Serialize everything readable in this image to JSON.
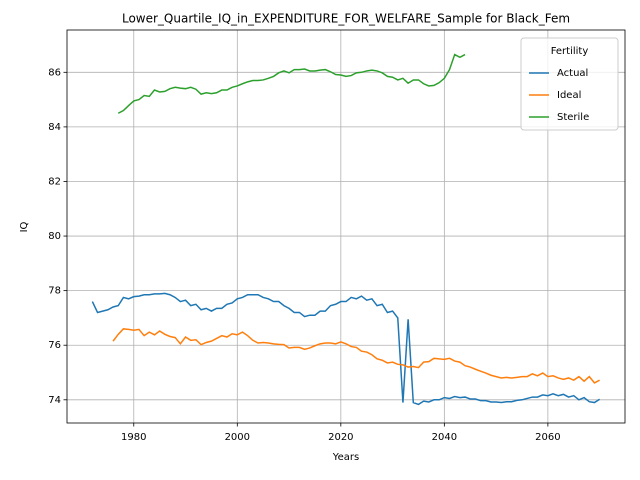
{
  "chart_data": {
    "type": "line",
    "title": "Lower_Quartile_IQ_in_EXPENDITURE_FOR_WELFARE_Sample for Black_Fem",
    "x_label": "Years",
    "y_label": "IQ",
    "legend_title": "Fertility",
    "legend": "upper right",
    "grid": true,
    "xlim": [
      1967.1,
      2074.9
    ],
    "ylim": [
      73.15,
      87.55
    ],
    "xticks": [
      1980,
      2000,
      2020,
      2040,
      2060
    ],
    "yticks": [
      74,
      76,
      78,
      80,
      82,
      84,
      86
    ],
    "x": [
      1972,
      1973,
      1974,
      1975,
      1976,
      1977,
      1978,
      1979,
      1980,
      1981,
      1982,
      1983,
      1984,
      1985,
      1986,
      1987,
      1988,
      1989,
      1990,
      1991,
      1992,
      1993,
      1994,
      1995,
      1996,
      1997,
      1998,
      1999,
      2000,
      2001,
      2002,
      2003,
      2004,
      2005,
      2006,
      2007,
      2008,
      2009,
      2010,
      2011,
      2012,
      2013,
      2014,
      2015,
      2016,
      2017,
      2018,
      2019,
      2020,
      2021,
      2022,
      2023,
      2024,
      2025,
      2026,
      2027,
      2028,
      2029,
      2030,
      2031,
      2032,
      2033,
      2034,
      2035,
      2036,
      2037,
      2038,
      2039,
      2040,
      2041,
      2042,
      2043,
      2044,
      2045,
      2046,
      2047,
      2048,
      2049,
      2050,
      2051,
      2052,
      2053,
      2054,
      2055,
      2056,
      2057,
      2058,
      2059,
      2060,
      2061,
      2062,
      2063,
      2064,
      2065,
      2066,
      2067,
      2068,
      2069,
      2070
    ],
    "series": [
      {
        "name": "Actual",
        "color": "#1f77b4",
        "values": [
          77.6,
          77.2,
          77.25,
          77.3,
          77.4,
          77.45,
          77.75,
          77.7,
          77.78,
          77.8,
          77.85,
          77.85,
          77.88,
          77.88,
          77.9,
          77.85,
          77.75,
          77.6,
          77.65,
          77.45,
          77.5,
          77.3,
          77.35,
          77.25,
          77.35,
          77.35,
          77.5,
          77.55,
          77.7,
          77.75,
          77.85,
          77.85,
          77.85,
          77.75,
          77.7,
          77.6,
          77.6,
          77.45,
          77.35,
          77.2,
          77.2,
          77.05,
          77.1,
          77.1,
          77.25,
          77.25,
          77.45,
          77.5,
          77.6,
          77.6,
          77.75,
          77.7,
          77.8,
          77.65,
          77.7,
          77.45,
          77.5,
          77.2,
          77.25,
          77.0,
          73.9,
          76.95,
          73.9,
          73.83,
          73.95,
          73.92,
          74.0,
          74.0,
          74.08,
          74.05,
          74.12,
          74.08,
          74.1,
          74.03,
          74.03,
          73.97,
          73.97,
          73.92,
          73.92,
          73.9,
          73.93,
          73.93,
          73.98,
          74.0,
          74.05,
          74.1,
          74.1,
          74.18,
          74.15,
          74.22,
          74.15,
          74.2,
          74.1,
          74.15,
          74.0,
          74.08,
          73.93,
          73.9,
          74.02
        ]
      },
      {
        "name": "Ideal",
        "color": "#ff7f0e",
        "values": [
          null,
          null,
          null,
          null,
          76.15,
          76.4,
          76.6,
          76.58,
          76.55,
          76.58,
          76.35,
          76.48,
          76.38,
          76.52,
          76.4,
          76.32,
          76.28,
          76.05,
          76.3,
          76.18,
          76.2,
          76.02,
          76.1,
          76.15,
          76.25,
          76.35,
          76.3,
          76.42,
          76.38,
          76.48,
          76.35,
          76.18,
          76.08,
          76.1,
          76.08,
          76.05,
          76.03,
          76.02,
          75.9,
          75.92,
          75.92,
          75.85,
          75.9,
          75.98,
          76.05,
          76.08,
          76.08,
          76.05,
          76.12,
          76.05,
          75.95,
          75.92,
          75.78,
          75.75,
          75.65,
          75.5,
          75.45,
          75.35,
          75.38,
          75.3,
          75.28,
          75.2,
          75.22,
          75.18,
          75.38,
          75.4,
          75.52,
          75.5,
          75.48,
          75.52,
          75.42,
          75.38,
          75.25,
          75.2,
          75.12,
          75.05,
          74.98,
          74.9,
          74.85,
          74.8,
          74.82,
          74.8,
          74.82,
          74.85,
          74.85,
          74.95,
          74.88,
          74.98,
          74.85,
          74.88,
          74.8,
          74.75,
          74.8,
          74.72,
          74.85,
          74.68,
          74.85,
          74.62,
          74.72
        ]
      },
      {
        "name": "Sterile",
        "color": "#2ca02c",
        "values": [
          null,
          null,
          null,
          null,
          null,
          84.5,
          84.6,
          84.78,
          84.95,
          85.0,
          85.15,
          85.12,
          85.35,
          85.28,
          85.3,
          85.4,
          85.45,
          85.42,
          85.4,
          85.45,
          85.38,
          85.2,
          85.25,
          85.22,
          85.25,
          85.35,
          85.35,
          85.45,
          85.5,
          85.58,
          85.65,
          85.7,
          85.7,
          85.72,
          85.78,
          85.85,
          85.98,
          86.05,
          85.98,
          86.1,
          86.1,
          86.12,
          86.05,
          86.05,
          86.08,
          86.1,
          86.02,
          85.92,
          85.9,
          85.85,
          85.88,
          85.98,
          86.0,
          86.05,
          86.08,
          86.05,
          85.98,
          85.85,
          85.82,
          85.72,
          85.78,
          85.6,
          85.72,
          85.72,
          85.58,
          85.5,
          85.52,
          85.62,
          85.78,
          86.1,
          86.65,
          86.55,
          86.65,
          null,
          null,
          null,
          null,
          null,
          null,
          null,
          null,
          null,
          null,
          null,
          null,
          null,
          null,
          null,
          null,
          null,
          null,
          null,
          null,
          null,
          null,
          null,
          null,
          null,
          null
        ]
      }
    ]
  }
}
